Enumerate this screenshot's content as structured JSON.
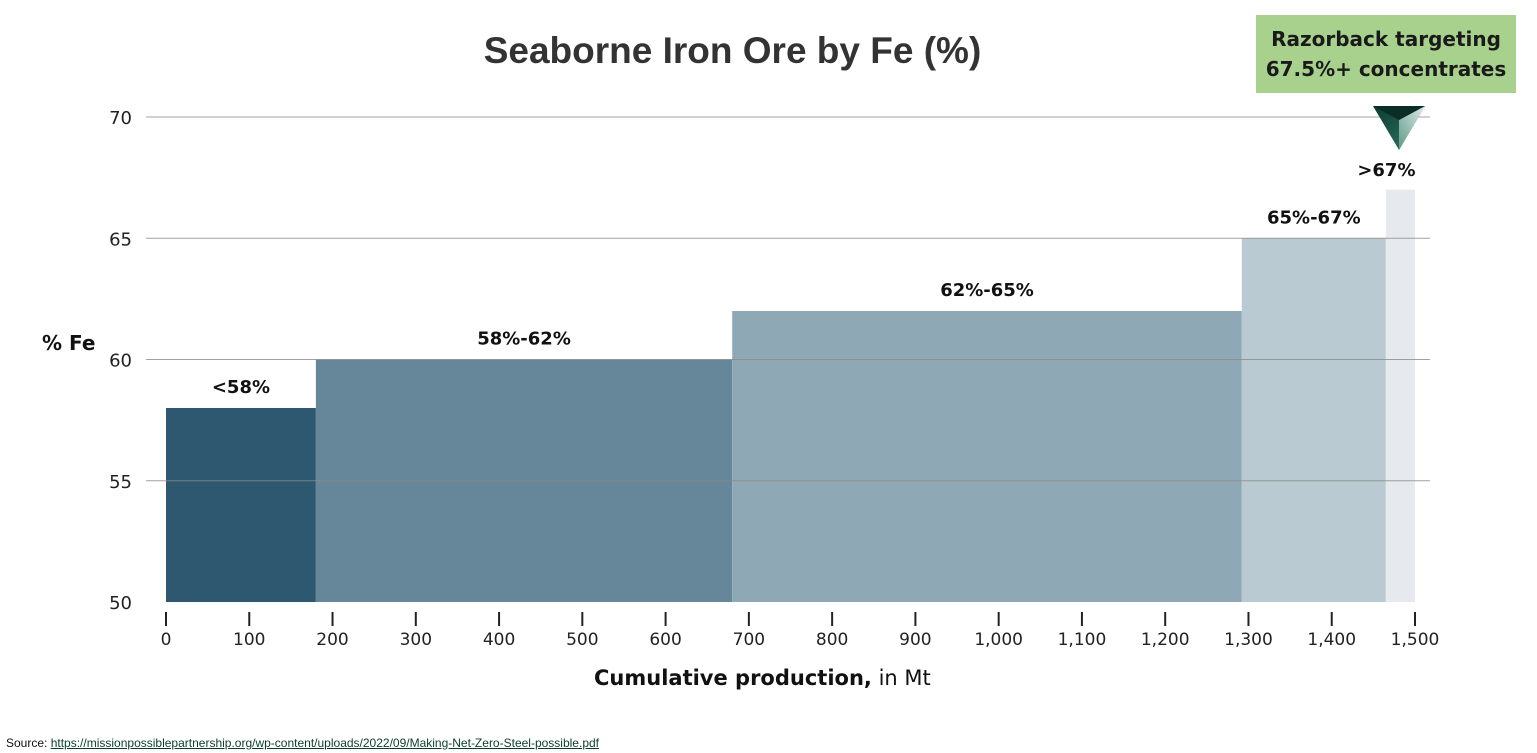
{
  "chart_data": {
    "type": "bar",
    "subtype": "variable-width (cumulative) bar chart",
    "title": "Seaborne Iron Ore by Fe (%)",
    "xlabel": "Cumulative production, in Mt",
    "xlabel_bold": "Cumulative production,",
    "xlabel_unit": "in Mt",
    "ylabel": "% Fe",
    "xlim": [
      0,
      1500
    ],
    "ylim": [
      50,
      70
    ],
    "x_ticks": [
      "0",
      "100",
      "200",
      "300",
      "400",
      "500",
      "600",
      "700",
      "800",
      "900",
      "1,000",
      "1,100",
      "1,200",
      "1,300",
      "1,400",
      "1,500"
    ],
    "y_ticks": [
      "50",
      "55",
      "60",
      "65",
      "70"
    ],
    "grid": "horizontal",
    "series": [
      {
        "name": "<58%",
        "x_start": 0,
        "x_end": 180,
        "value": 58,
        "color": "#2e5870"
      },
      {
        "name": "58%-62%",
        "x_start": 180,
        "x_end": 680,
        "value": 60,
        "color": "#668799"
      },
      {
        "name": "62%-65%",
        "x_start": 680,
        "x_end": 1292,
        "value": 62,
        "color": "#8fa8b6"
      },
      {
        "name": "65%-67%",
        "x_start": 1292,
        "x_end": 1465,
        "value": 65,
        "color": "#b9cad3"
      },
      {
        "name": ">67%",
        "x_start": 1465,
        "x_end": 1500,
        "value": 67,
        "color": "#e6eaee"
      }
    ],
    "categories": [
      "<58%",
      "58%-62%",
      "62%-65%",
      "65%-67%",
      ">67%"
    ],
    "values": [
      58,
      60,
      62,
      65,
      67
    ],
    "annotations": [
      {
        "text": "Razorback targeting 67.5%+ concentrates",
        "background": "#a9d18e",
        "pointer": "down-triangle marker above >67% bar"
      }
    ]
  },
  "callout": {
    "line1": "Razorback targeting",
    "line2": "67.5%+ concentrates"
  },
  "source": {
    "label": "Source:",
    "url_text": "https://missionpossiblepartnership.org/wp-content/uploads/2022/09/Making-Net-Zero-Steel-possible.pdf"
  },
  "colors": {
    "grid": "#b0b0b0",
    "title": "#333333",
    "marker": "#1f5a4a"
  }
}
